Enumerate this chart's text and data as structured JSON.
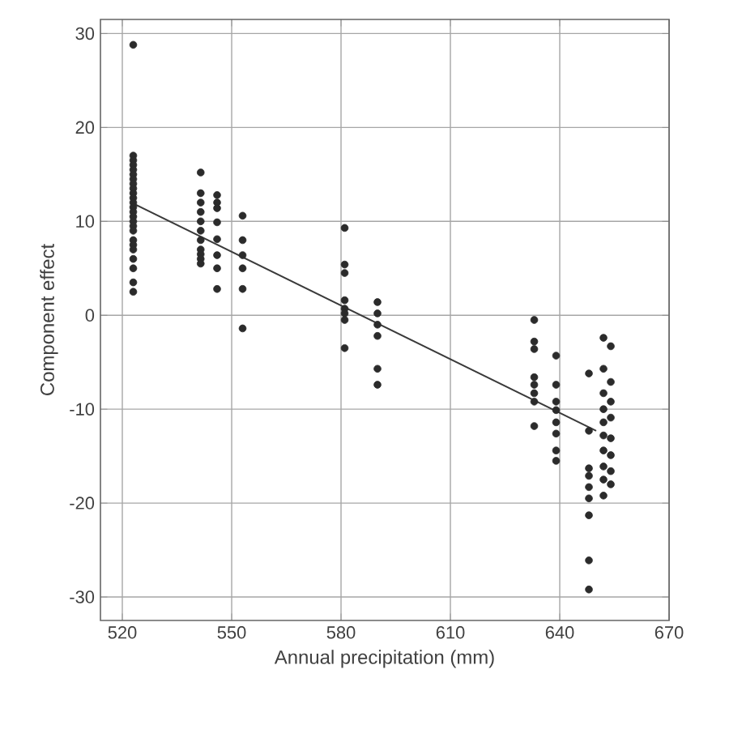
{
  "chart_data": {
    "type": "scatter",
    "xlabel": "Annual precipitation (mm)",
    "ylabel": "Component effect",
    "xlim": [
      514,
      670
    ],
    "ylim": [
      -32.5,
      31.5
    ],
    "xticks": [
      520,
      550,
      580,
      610,
      640,
      670
    ],
    "yticks": [
      -30,
      -20,
      -10,
      0,
      10,
      20,
      30
    ],
    "grid": true,
    "series": [
      {
        "color": "#2b2b2b",
        "marker": "circle",
        "x": [
          523,
          523,
          523,
          523,
          523,
          523,
          523,
          523,
          523,
          523,
          523,
          523,
          523,
          523,
          523,
          523,
          523,
          523,
          523,
          523,
          523,
          523,
          523,
          523,
          523,
          541.5,
          541.5,
          541.5,
          541.5,
          541.5,
          541.5,
          541.5,
          541.5,
          541.5,
          541.5,
          541.5,
          546,
          546,
          546,
          546,
          546,
          546,
          546,
          546,
          553,
          553,
          553,
          553,
          553,
          553,
          581,
          581,
          581,
          581,
          581,
          581,
          581,
          581,
          590,
          590,
          590,
          590,
          590,
          590,
          633,
          633,
          633,
          633,
          633,
          633,
          633,
          633,
          639,
          639,
          639,
          639,
          639,
          639,
          639,
          639,
          648,
          648,
          648,
          648,
          648,
          648,
          648,
          648,
          648,
          652,
          652,
          652,
          652,
          652,
          652,
          652,
          652,
          652,
          652,
          654,
          654,
          654,
          654,
          654,
          654,
          654,
          654
        ],
        "values": [
          28.8,
          17,
          16.5,
          16,
          15.5,
          15,
          14.5,
          14,
          13.5,
          13,
          12.5,
          12,
          11.5,
          11,
          10.5,
          10,
          9.5,
          9,
          8,
          7.5,
          7,
          6,
          5,
          3.5,
          2.5,
          15.2,
          13,
          12,
          11,
          10,
          9,
          8,
          7,
          6.5,
          6,
          5.5,
          12.8,
          12,
          11.4,
          9.9,
          8.1,
          6.4,
          5,
          2.8,
          10.6,
          8,
          6.4,
          5,
          2.8,
          -1.4,
          9.3,
          5.4,
          4.5,
          1.6,
          0.7,
          0.2,
          -0.5,
          -3.5,
          1.4,
          0.2,
          -1,
          -2.2,
          -5.7,
          -7.4,
          -0.5,
          -2.8,
          -3.6,
          -6.6,
          -7.4,
          -8.3,
          -9.2,
          -11.8,
          -4.3,
          -7.4,
          -9.2,
          -10.1,
          -11.4,
          -12.6,
          -14.4,
          -15.5,
          -6.2,
          -12.3,
          -16.3,
          -17.1,
          -18.3,
          -19.5,
          -21.3,
          -26.1,
          -29.2,
          -2.4,
          -5.7,
          -8.3,
          -10,
          -11.4,
          -12.8,
          -14.4,
          -16.1,
          -17.5,
          -19.2,
          -3.3,
          -7.1,
          -9.2,
          -10.9,
          -13.1,
          -14.9,
          -16.6,
          -18
        ]
      },
      {
        "type": "line",
        "color": "#3a3a3a",
        "marker": "none",
        "x": [
          523,
          650
        ],
        "values": [
          11.9,
          -12.3
        ]
      }
    ]
  }
}
